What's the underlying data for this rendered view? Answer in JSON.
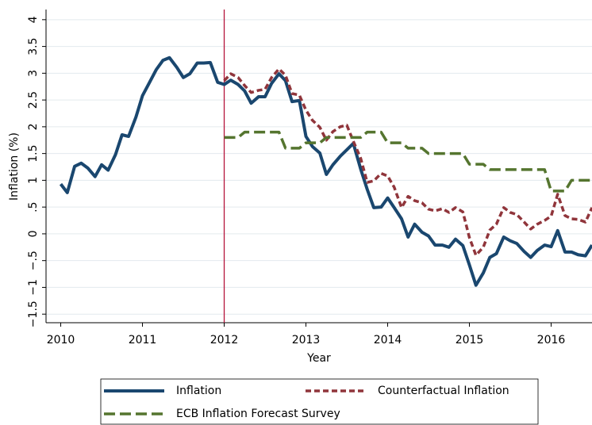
{
  "chart_data": {
    "type": "line",
    "xlabel": "Year",
    "ylabel": "Inflation (%)",
    "x": [
      2010,
      2010.08,
      2010.17,
      2010.25,
      2010.33,
      2010.42,
      2010.5,
      2010.58,
      2010.67,
      2010.75,
      2010.83,
      2010.92,
      2011,
      2011.08,
      2011.17,
      2011.25,
      2011.33,
      2011.42,
      2011.5,
      2011.58,
      2011.67,
      2011.75,
      2011.83,
      2011.92,
      2012,
      2012.08,
      2012.17,
      2012.25,
      2012.33,
      2012.42,
      2012.5,
      2012.58,
      2012.67,
      2012.75,
      2012.83,
      2012.92,
      2013,
      2013.08,
      2013.17,
      2013.25,
      2013.33,
      2013.42,
      2013.5,
      2013.58,
      2013.67,
      2013.75,
      2013.83,
      2013.92,
      2014,
      2014.08,
      2014.17,
      2014.25,
      2014.33,
      2014.42,
      2014.5,
      2014.58,
      2014.67,
      2014.75,
      2014.83,
      2014.92,
      2015,
      2015.08,
      2015.17,
      2015.25,
      2015.33,
      2015.42,
      2015.5,
      2015.58,
      2015.67,
      2015.75,
      2015.83,
      2015.92,
      2016,
      2016.08,
      2016.17,
      2016.25,
      2016.33,
      2016.42,
      2016.5
    ],
    "series": [
      {
        "name": "Inflation",
        "color": "#1a476f",
        "dash": "solid",
        "values": [
          0.93,
          0.77,
          1.26,
          1.32,
          1.23,
          1.07,
          1.29,
          1.19,
          1.48,
          1.85,
          1.82,
          2.18,
          2.58,
          2.81,
          3.07,
          3.24,
          3.29,
          3.11,
          2.92,
          2.99,
          3.19,
          3.19,
          3.2,
          2.83,
          2.79,
          2.87,
          2.79,
          2.67,
          2.44,
          2.56,
          2.56,
          2.81,
          2.99,
          2.86,
          2.47,
          2.49,
          1.82,
          1.63,
          1.51,
          1.11,
          1.29,
          1.45,
          1.57,
          1.69,
          1.21,
          0.83,
          0.49,
          0.5,
          0.67,
          0.49,
          0.28,
          -0.06,
          0.18,
          0.03,
          -0.04,
          -0.21,
          -0.21,
          -0.25,
          -0.1,
          -0.22,
          -0.58,
          -0.96,
          -0.73,
          -0.44,
          -0.37,
          -0.06,
          -0.13,
          -0.18,
          -0.33,
          -0.44,
          -0.31,
          -0.21,
          -0.24,
          0.06,
          -0.34,
          -0.34,
          -0.39,
          -0.41,
          -0.21
        ]
      },
      {
        "name": "Counterfactual Inflation",
        "color": "#90353b",
        "dash": "short",
        "values": [
          null,
          null,
          null,
          null,
          null,
          null,
          null,
          null,
          null,
          null,
          null,
          null,
          null,
          null,
          null,
          null,
          null,
          null,
          null,
          null,
          null,
          null,
          null,
          null,
          2.86,
          2.99,
          2.92,
          2.77,
          2.64,
          2.68,
          2.7,
          2.92,
          3.08,
          2.96,
          2.62,
          2.59,
          2.31,
          2.12,
          1.99,
          1.75,
          1.91,
          2.0,
          2.03,
          1.73,
          1.41,
          0.96,
          0.99,
          1.13,
          1.08,
          0.87,
          0.49,
          0.7,
          0.62,
          0.58,
          0.46,
          0.43,
          0.47,
          0.4,
          0.49,
          0.41,
          -0.07,
          -0.4,
          -0.25,
          0.07,
          0.18,
          0.49,
          0.4,
          0.36,
          0.22,
          0.09,
          0.18,
          0.25,
          0.33,
          0.74,
          0.34,
          0.28,
          0.27,
          0.22,
          0.49
        ]
      },
      {
        "name": "ECB Inflation Forecast Survey",
        "color": "#55752f",
        "dash": "long",
        "values": [
          null,
          null,
          null,
          null,
          null,
          null,
          null,
          null,
          null,
          null,
          null,
          null,
          null,
          null,
          null,
          null,
          null,
          null,
          null,
          null,
          null,
          null,
          null,
          null,
          1.8,
          1.8,
          1.8,
          1.9,
          1.9,
          1.9,
          1.9,
          1.9,
          1.9,
          1.6,
          1.6,
          1.6,
          1.7,
          1.7,
          1.7,
          1.8,
          1.8,
          1.8,
          1.8,
          1.8,
          1.8,
          1.9,
          1.9,
          1.9,
          1.7,
          1.7,
          1.7,
          1.6,
          1.6,
          1.6,
          1.5,
          1.5,
          1.5,
          1.5,
          1.5,
          1.5,
          1.3,
          1.3,
          1.3,
          1.2,
          1.2,
          1.2,
          1.2,
          1.2,
          1.2,
          1.2,
          1.2,
          1.2,
          0.8,
          0.8,
          0.8,
          1.0,
          1.0,
          1.0,
          1.0
        ]
      }
    ],
    "xlim": [
      2009.82,
      2016.5
    ],
    "xticks": [
      2010,
      2011,
      2012,
      2013,
      2014,
      2015,
      2016
    ],
    "ylim": [
      -1.66,
      4.19
    ],
    "yticks": [
      4,
      3.5,
      3,
      2.5,
      2,
      1.5,
      1,
      {
        "value": 0.5,
        "label": ".5"
      },
      0,
      {
        "value": -0.5,
        "label": "−.5"
      },
      {
        "value": -1,
        "label": "−1"
      },
      {
        "value": -1.5,
        "label": "−1.5"
      }
    ],
    "grid": true,
    "grid_color": "#e3eaee",
    "xline": 2012,
    "xline_color": "#b5133b",
    "legend": "bottom"
  }
}
